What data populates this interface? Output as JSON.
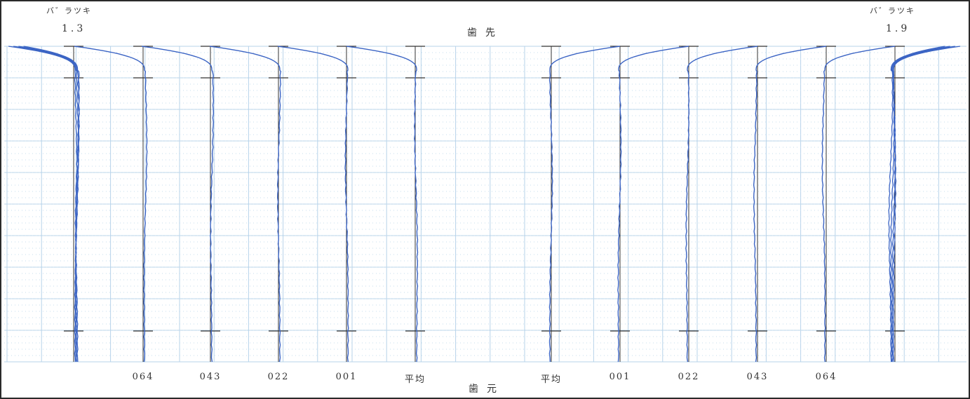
{
  "header": {
    "left_title": "バ゛ラツキ",
    "left_value": "1.3",
    "right_title": "バ゛ラツキ",
    "right_value": "1.9",
    "top_label": "歯先",
    "bottom_label": "歯元"
  },
  "colors": {
    "grid": "#b7d3ea",
    "grid_dots": "#c6dcee",
    "trace": "#3b64c4",
    "axis": "#333333",
    "frame": "#2a2a2a"
  },
  "chart_data": {
    "type": "line",
    "title": "",
    "groups": [
      {
        "side": "left",
        "variation": "1.3",
        "columns": [
          {
            "label": "",
            "profile": "overlay"
          },
          {
            "label": "064",
            "profile": "single"
          },
          {
            "label": "043",
            "profile": "single"
          },
          {
            "label": "022",
            "profile": "single"
          },
          {
            "label": "001",
            "profile": "single"
          },
          {
            "label": "平均",
            "profile": "average"
          }
        ]
      },
      {
        "side": "right",
        "variation": "1.9",
        "columns": [
          {
            "label": "平均",
            "profile": "average"
          },
          {
            "label": "001",
            "profile": "single"
          },
          {
            "label": "022",
            "profile": "single"
          },
          {
            "label": "043",
            "profile": "single"
          },
          {
            "label": "064",
            "profile": "single"
          },
          {
            "label": "",
            "profile": "overlay"
          }
        ]
      }
    ]
  }
}
